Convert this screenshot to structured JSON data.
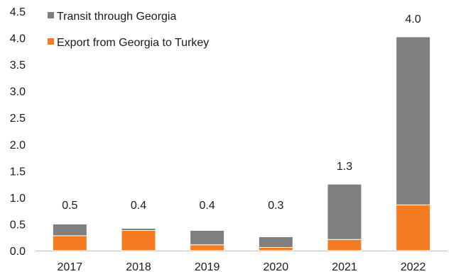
{
  "chart_data": {
    "type": "bar",
    "stacked": true,
    "categories": [
      "2017",
      "2018",
      "2019",
      "2020",
      "2021",
      "2022"
    ],
    "series": [
      {
        "name": "Export from Georgia to Turkey",
        "color": "#f47b20",
        "values": [
          0.28,
          0.38,
          0.11,
          0.06,
          0.21,
          0.86
        ]
      },
      {
        "name": "Transit through Georgia",
        "color": "#7f7f7f",
        "values": [
          0.22,
          0.04,
          0.27,
          0.2,
          1.04,
          3.16
        ]
      }
    ],
    "totals_labels": [
      "0.5",
      "0.4",
      "0.4",
      "0.3",
      "1.3",
      "4.0"
    ],
    "yticks": [
      "0.0",
      "0.5",
      "1.0",
      "1.5",
      "2.0",
      "2.5",
      "3.0",
      "3.5",
      "4.0",
      "4.5"
    ],
    "ylim": [
      0,
      4.5
    ],
    "grid": false,
    "legend_position": "top-left",
    "title": "",
    "xlabel": "",
    "ylabel": ""
  }
}
